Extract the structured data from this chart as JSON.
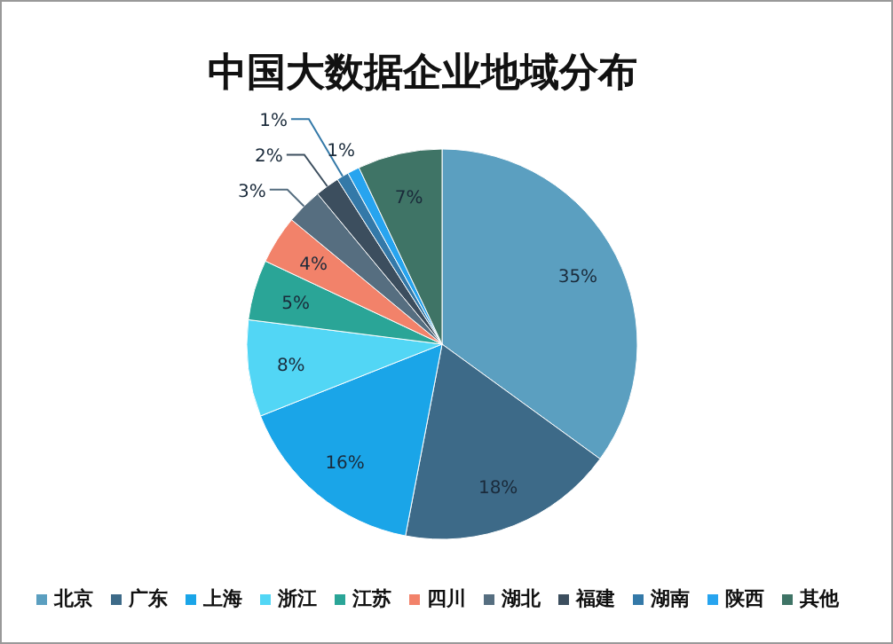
{
  "chart_data": {
    "type": "pie",
    "title": "中国大数据企业地域分布",
    "categories": [
      "北京",
      "广东",
      "上海",
      "浙江",
      "江苏",
      "四川",
      "湖北",
      "福建",
      "湖南",
      "陕西",
      "其他"
    ],
    "values": [
      35,
      18,
      16,
      8,
      5,
      4,
      3,
      2,
      1,
      1,
      7
    ],
    "colors": [
      "#5b9fc0",
      "#3d6a88",
      "#1aa5e8",
      "#52d6f5",
      "#2aa597",
      "#f2826a",
      "#566e80",
      "#3c4e5e",
      "#3479a8",
      "#27a4ef",
      "#3f7466"
    ],
    "value_labels": [
      "35%",
      "18%",
      "16%",
      "8%",
      "5%",
      "4%",
      "3%",
      "2%",
      "1%",
      "1%",
      "7%"
    ],
    "legend": "bottom"
  }
}
